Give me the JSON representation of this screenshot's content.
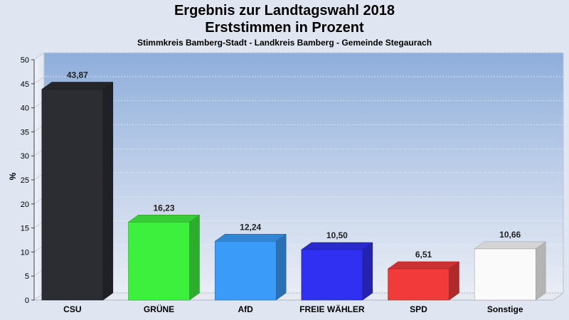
{
  "chart_data": {
    "type": "bar",
    "title": "Ergebnis zur Landtagswahl 2018",
    "subtitle": "Erststimmen in Prozent",
    "subtitle2": "Stimmkreis Bamberg-Stadt - Landkreis Bamberg - Gemeinde Stegaurach",
    "ylabel": "%",
    "ylim": [
      0,
      50
    ],
    "yticks": [
      0,
      5,
      10,
      15,
      20,
      25,
      30,
      35,
      40,
      45,
      50
    ],
    "categories": [
      "CSU",
      "GRÜNE",
      "AfD",
      "FREIE WÄHLER",
      "SPD",
      "Sonstige"
    ],
    "values": [
      43.87,
      16.23,
      12.24,
      10.5,
      6.51,
      10.66
    ],
    "value_labels": [
      "43,87",
      "16,23",
      "12,24",
      "10,50",
      "6,51",
      "10,66"
    ],
    "colors": [
      "#2b2d33",
      "#3ef03e",
      "#3a9cf8",
      "#3030f2",
      "#f23a3a",
      "#fafafa"
    ],
    "grid": true
  }
}
